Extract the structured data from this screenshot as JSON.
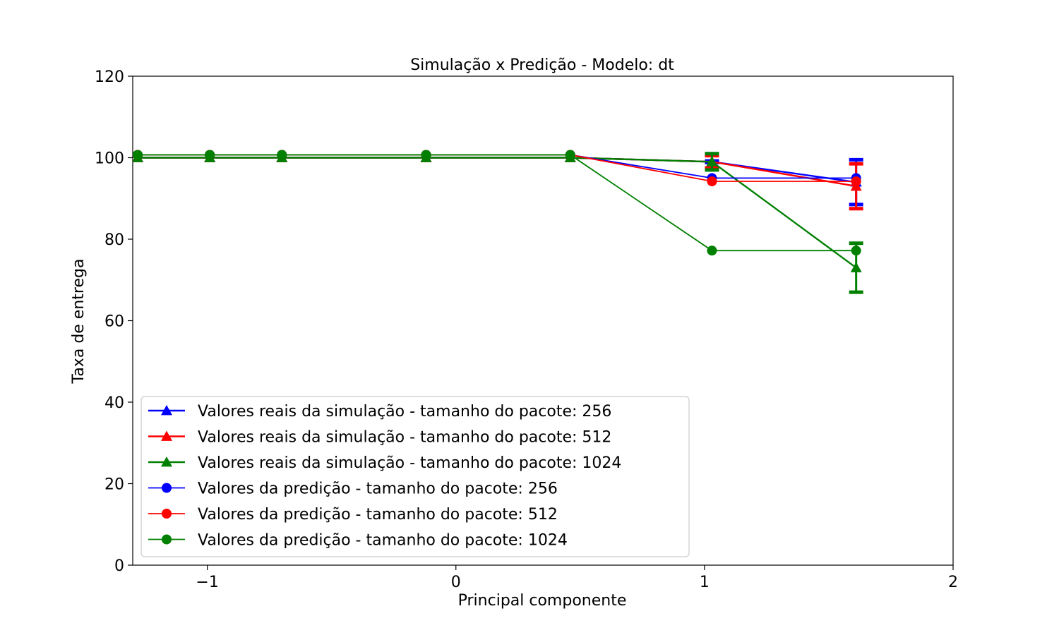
{
  "chart_data": {
    "type": "line",
    "title": "Simulação x Predição - Modelo: dt",
    "xlabel": "Principal componente",
    "ylabel": "Taxa de entrega",
    "xlim": [
      -1.3,
      2
    ],
    "ylim": [
      0,
      120
    ],
    "xticks": [
      -1,
      0,
      1,
      2
    ],
    "xtick_labels": [
      "−1",
      "0",
      "1",
      "2"
    ],
    "yticks": [
      0,
      20,
      40,
      60,
      80,
      100,
      120
    ],
    "ytick_labels": [
      "0",
      "20",
      "40",
      "60",
      "80",
      "100",
      "120"
    ],
    "legend_position": "lower-left",
    "series": [
      {
        "name": "Valores reais da simulação - tamanho do pacote: 256",
        "color": "#0000ff",
        "marker": "triangle",
        "style": "real",
        "x": [
          -1.28,
          -0.99,
          -0.7,
          -0.12,
          0.46,
          1.03,
          1.61
        ],
        "y": [
          100,
          100,
          100,
          100,
          100,
          99,
          94
        ],
        "err": [
          0,
          0,
          0,
          0,
          0,
          0.2,
          5.5
        ]
      },
      {
        "name": "Valores reais da simulação - tamanho do pacote: 512",
        "color": "#ff0000",
        "marker": "triangle",
        "style": "real",
        "x": [
          -1.28,
          -0.99,
          -0.7,
          -0.12,
          0.46,
          1.03,
          1.61
        ],
        "y": [
          100,
          100,
          100,
          100,
          100,
          99,
          93
        ],
        "err": [
          0,
          0,
          0,
          0,
          0,
          1.5,
          5.5
        ]
      },
      {
        "name": "Valores reais da simulação - tamanho do pacote: 1024",
        "color": "#008000",
        "marker": "triangle",
        "style": "real",
        "x": [
          -1.28,
          -0.99,
          -0.7,
          -0.12,
          0.46,
          1.03,
          1.61
        ],
        "y": [
          100,
          100,
          100,
          100,
          100,
          99,
          73
        ],
        "err": [
          0,
          0,
          0,
          0,
          0,
          2,
          6
        ]
      },
      {
        "name": "Valores da predição - tamanho do pacote: 256",
        "color": "#0000ff",
        "marker": "circle",
        "style": "pred",
        "x": [
          -1.28,
          -0.99,
          -0.7,
          -0.12,
          0.46,
          1.03,
          1.61
        ],
        "y": [
          100.7,
          100.7,
          100.7,
          100.7,
          100.7,
          95,
          95
        ]
      },
      {
        "name": "Valores da predição - tamanho do pacote: 512",
        "color": "#ff0000",
        "marker": "circle",
        "style": "pred",
        "x": [
          -1.28,
          -0.99,
          -0.7,
          -0.12,
          0.46,
          1.03,
          1.61
        ],
        "y": [
          100.7,
          100.7,
          100.7,
          100.7,
          100.7,
          94.2,
          94.2
        ]
      },
      {
        "name": "Valores da predição - tamanho do pacote: 1024",
        "color": "#008000",
        "marker": "circle",
        "style": "pred",
        "x": [
          -1.28,
          -0.99,
          -0.7,
          -0.12,
          0.46,
          1.03,
          1.61
        ],
        "y": [
          100.7,
          100.7,
          100.7,
          100.7,
          100.7,
          77.2,
          77.2
        ]
      }
    ]
  }
}
